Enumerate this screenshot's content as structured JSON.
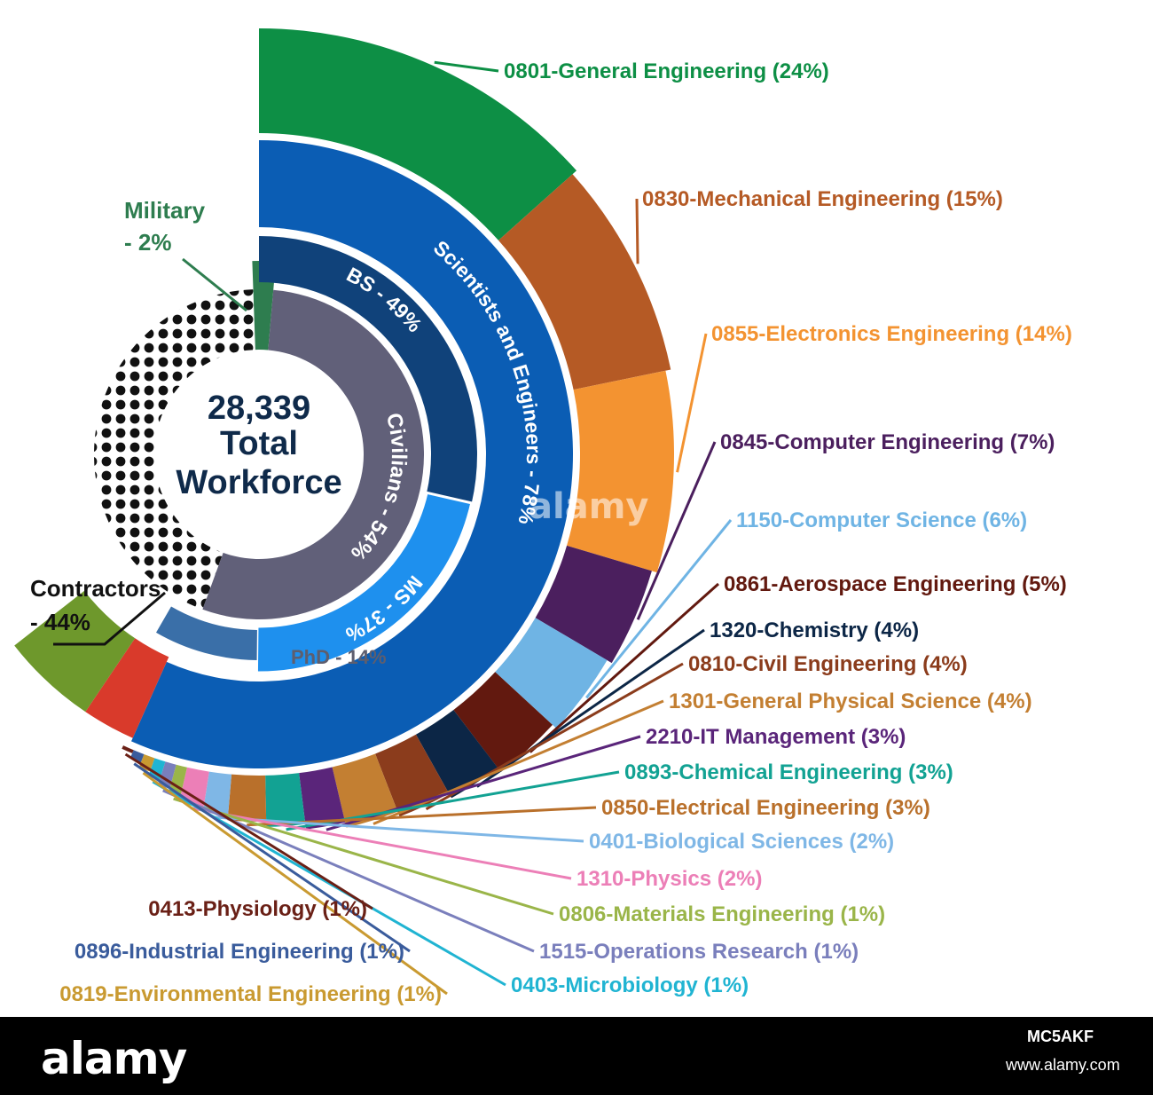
{
  "chart_data": {
    "type": "pie",
    "total": {
      "value": "28,339",
      "line2": "Total",
      "line3": "Workforce"
    },
    "workforce_split": [
      {
        "label": "Contractors",
        "value_text": "- 44%",
        "value": 44,
        "color": "#111111"
      },
      {
        "label": "Military",
        "value_text": "- 2%",
        "value": 2,
        "color": "#2e7d4f"
      },
      {
        "label": "Civilians - 54%",
        "value": 54,
        "color": "#616079"
      }
    ],
    "education": [
      {
        "label": "BS - 49%",
        "value": 49,
        "color": "#10427a"
      },
      {
        "label": "MS - 37%",
        "value": 37,
        "color": "#1e90ee"
      },
      {
        "label": "PhD - 14%",
        "value": 14,
        "color": "#3a6fa8"
      }
    ],
    "occupation_group": {
      "label": "Scientists and Engineers - 78%",
      "value": 78,
      "color": "#0b5db4"
    },
    "occupations": [
      {
        "label": "0801-General Engineering (24%)",
        "value": 24,
        "color": "#0d8f45"
      },
      {
        "label": "0830-Mechanical Engineering (15%)",
        "value": 15,
        "color": "#b55a25"
      },
      {
        "label": "0855-Electronics Engineering (14%)",
        "value": 14,
        "color": "#f39331"
      },
      {
        "label": "0845-Computer Engineering (7%)",
        "value": 7,
        "color": "#4b1f5e"
      },
      {
        "label": "1150-Computer Science (6%)",
        "value": 6,
        "color": "#6fb4e4"
      },
      {
        "label": "0861-Aerospace Engineering (5%)",
        "value": 5,
        "color": "#62190f"
      },
      {
        "label": "1320-Chemistry (4%)",
        "value": 4,
        "color": "#0c2646"
      },
      {
        "label": "0810-Civil Engineering (4%)",
        "value": 4,
        "color": "#8b3c1c"
      },
      {
        "label": "1301-General Physical Science (4%)",
        "value": 4,
        "color": "#c37f32"
      },
      {
        "label": "2210-IT Management (3%)",
        "value": 3,
        "color": "#5a257a"
      },
      {
        "label": "0893-Chemical Engineering (3%)",
        "value": 3,
        "color": "#12a293"
      },
      {
        "label": "0850-Electrical Engineering (3%)",
        "value": 3,
        "color": "#b9702b"
      },
      {
        "label": "0401-Biological Sciences (2%)",
        "value": 2,
        "color": "#7fb7e6"
      },
      {
        "label": "1310-Physics (2%)",
        "value": 2,
        "color": "#ec7fb7"
      },
      {
        "label": "0806-Materials Engineering (1%)",
        "value": 1,
        "color": "#9ab549"
      },
      {
        "label": "1515-Operations Research (1%)",
        "value": 1,
        "color": "#7a7fbc"
      },
      {
        "label": "0403-Microbiology (1%)",
        "value": 1,
        "color": "#20b4d2"
      },
      {
        "label": "0819-Environmental Engineering (1%)",
        "value": 1,
        "color": "#c99a31"
      },
      {
        "label": "0896-Industrial Engineering (1%)",
        "value": 1,
        "color": "#3a5c9c"
      },
      {
        "label": "0413-Physiology (1%)",
        "value": 1,
        "color": "#6a2016"
      }
    ],
    "unlabeled_segments": [
      {
        "value": 12,
        "color": "#6e982c"
      },
      {
        "value": 10,
        "color": "#d93a2b"
      }
    ]
  },
  "watermark": {
    "text": "alamy"
  },
  "footer": {
    "brand": "alamy",
    "image_id": "MC5AKF",
    "url": "www.alamy.com"
  }
}
